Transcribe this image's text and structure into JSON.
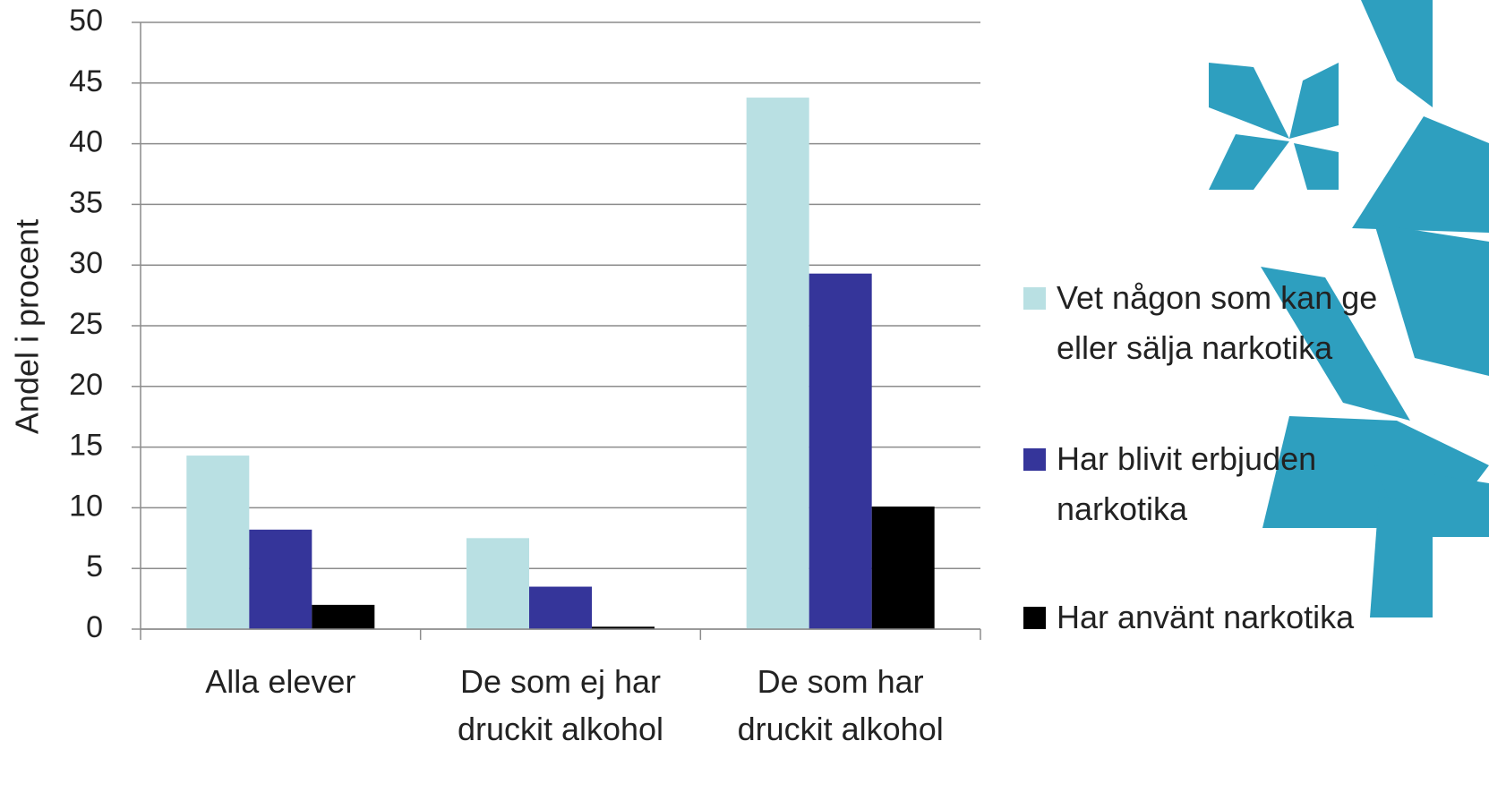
{
  "chart_data": {
    "type": "bar",
    "y_label": "Andel i procent",
    "categories": [
      "Alla elever",
      "De som ej har druckit alkohol",
      "De som har druckit alkohol"
    ],
    "series": [
      {
        "name": "Vet någon som kan ge eller sälja narkotika",
        "color": "#b9e0e3",
        "values": [
          14.3,
          7.5,
          43.8
        ]
      },
      {
        "name": "Har blivit erbjuden narkotika",
        "color": "#35359a",
        "values": [
          8.2,
          3.5,
          29.3
        ]
      },
      {
        "name": "Har använt narkotika",
        "color": "#000000",
        "values": [
          2.0,
          0.2,
          10.1
        ]
      }
    ],
    "ylim": [
      0,
      50
    ],
    "yticks": [
      0,
      5,
      10,
      15,
      20,
      25,
      30,
      35,
      40,
      45,
      50
    ],
    "grid": true
  }
}
